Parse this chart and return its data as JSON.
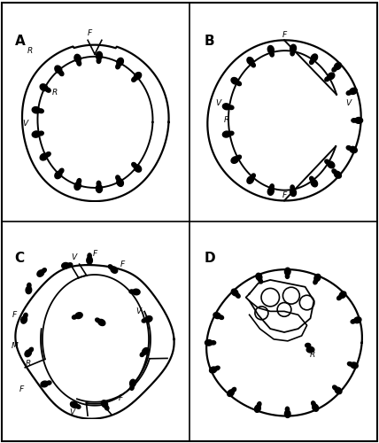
{
  "background_color": "#ffffff",
  "panel_labels": [
    "A",
    "B",
    "C",
    "D"
  ],
  "panel_label_fontsize": 11,
  "panel_label_weight": "bold",
  "annotation_fontsize": 6.5,
  "line_color": "#000000"
}
